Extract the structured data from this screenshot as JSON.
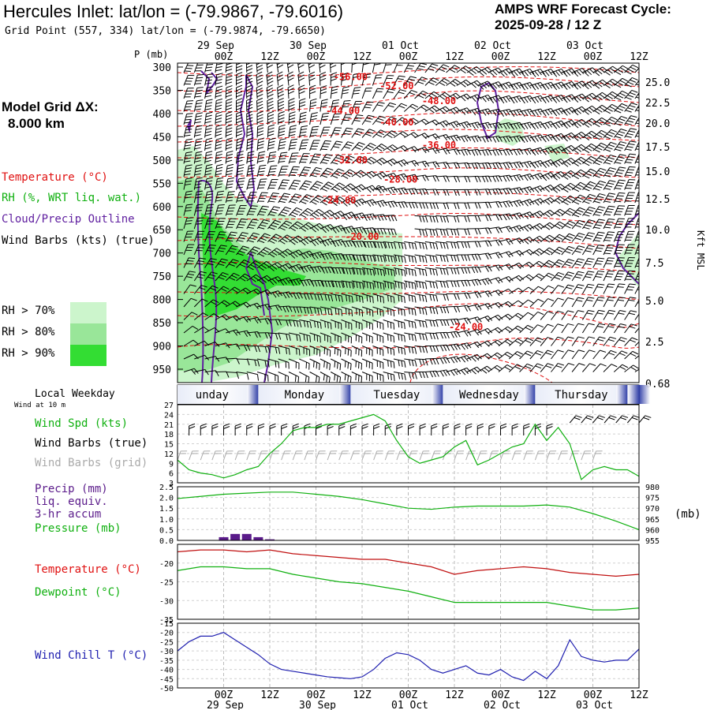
{
  "header": {
    "title": "Hercules Inlet:  lat/lon = (-79.9867, -79.6016)",
    "subtitle": "Grid Point (557, 334) lat/lon = (-79.9874, -79.6650)",
    "cycle_label": "AMPS WRF Forecast Cycle:",
    "cycle_value": "2025-09-28 / 12  Z"
  },
  "model_grid": {
    "label": "Model Grid ΔX:",
    "value": "8.000 km"
  },
  "legend": {
    "temperature": "Temperature (°C)",
    "rh": "RH (%, WRT liq. wat.)",
    "cloud": "Cloud/Precip Outline",
    "wind": "Wind Barbs (kts) (true)",
    "rh70": "RH > 70%",
    "rh80": "RH > 80%",
    "rh90": "RH > 90%",
    "local_weekday": "Local Weekday",
    "wind_10m": "Wind at 10 m",
    "wind_spd": "Wind Spd (kts)",
    "wind_barbs_true": "Wind Barbs (true)",
    "wind_barbs_grid": "Wind Barbs (grid)",
    "precip1": "Precip (mm)",
    "precip2": "liq. equiv.",
    "precip3": "3-hr accum",
    "pressure": "Pressure (mb)",
    "temp2": "Temperature (°C)",
    "dewpoint": "Dewpoint (°C)",
    "windchill": "Wind Chill T (°C)",
    "mb_unit": "(mb)"
  },
  "colors": {
    "temperature": "#e01010",
    "rh_label": "#10b010",
    "cloud": "#6020a0",
    "rh70": "#ccf5cc",
    "rh80": "#99e699",
    "rh90": "#33dd33",
    "windchill": "#2020b0",
    "precip": "#5a1a8a",
    "grid_barbs": "#aaaaaa"
  },
  "chart_data": [
    {
      "type": "heatmap",
      "name": "cross-section",
      "yaxis_title": "P (mb)",
      "pressure_ticks": [
        300,
        350,
        400,
        450,
        500,
        550,
        600,
        650,
        700,
        750,
        800,
        850,
        900,
        950
      ],
      "kft_ticks": [
        "25.0",
        "22.5",
        "20.0",
        "17.5",
        "15.0",
        "12.5",
        "10.0",
        "7.5",
        "5.0",
        "2.5",
        "0.68"
      ],
      "kft_title": "Kft MSL",
      "date_labels": [
        {
          "day": "29 Sep",
          "hour": 0
        },
        {
          "day": "30 Sep",
          "hour": 24
        },
        {
          "day": "01 Oct",
          "hour": 48
        },
        {
          "day": "02 Oct",
          "hour": 72
        },
        {
          "day": "03 Oct",
          "hour": 96
        }
      ],
      "time_ticks": [
        "00Z",
        "12Z",
        "00Z",
        "12Z",
        "00Z",
        "12Z",
        "00Z",
        "12Z",
        "00Z",
        "12Z"
      ],
      "time_range_hours": [
        -12,
        108
      ],
      "temperature_labels": [
        {
          "text": "-56.00",
          "hour": 33,
          "p": 321
        },
        {
          "text": "-52.00",
          "hour": 45,
          "p": 341
        },
        {
          "text": "-48.00",
          "hour": 56,
          "p": 373
        },
        {
          "text": "-44.00",
          "hour": 31,
          "p": 394
        },
        {
          "text": "-40.00",
          "hour": 45,
          "p": 419
        },
        {
          "text": "-36.00",
          "hour": 56,
          "p": 468
        },
        {
          "text": "-32.00",
          "hour": 33,
          "p": 500
        },
        {
          "text": "-28.00",
          "hour": 46,
          "p": 542
        },
        {
          "text": "-24.00",
          "hour": 30,
          "p": 587
        },
        {
          "text": "-20.00",
          "hour": 36,
          "p": 665
        },
        {
          "text": "-24.00",
          "hour": 63,
          "p": 859
        }
      ],
      "weekdays": [
        "unday",
        "Monday",
        "Tuesday",
        "Wednesday",
        "Thursday"
      ]
    },
    {
      "type": "line",
      "name": "wind-speed",
      "ylim": [
        3,
        27
      ],
      "yticks": [
        3,
        6,
        9,
        12,
        15,
        18,
        21,
        24,
        27
      ],
      "x_hours": [
        -12,
        -9,
        -6,
        -3,
        0,
        3,
        6,
        9,
        12,
        15,
        18,
        21,
        24,
        27,
        30,
        33,
        36,
        39,
        42,
        45,
        48,
        51,
        54,
        57,
        60,
        63,
        66,
        69,
        72,
        75,
        78,
        81,
        84,
        87,
        90,
        93,
        96,
        99,
        102,
        105,
        108
      ],
      "wind_kts": [
        10,
        7,
        6,
        5.5,
        4.5,
        5.5,
        7,
        8,
        12,
        15,
        19,
        20,
        20,
        21,
        21,
        22,
        23,
        24,
        22,
        16,
        11,
        9,
        10,
        11,
        14,
        16,
        8.5,
        10,
        12,
        14,
        15,
        21,
        16,
        20,
        15,
        4,
        7,
        8,
        7,
        7,
        5
      ]
    },
    {
      "type": "bar+line",
      "name": "precip-pressure",
      "precip_ylim": [
        0,
        2.5
      ],
      "precip_yticks": [
        "0.0",
        "0.5",
        "1.0",
        "1.5",
        "2.0",
        "2.5"
      ],
      "pressure_ylim": [
        955,
        980
      ],
      "pressure_yticks": [
        955,
        960,
        965,
        970,
        975,
        980
      ],
      "precip_hours": [
        0,
        3,
        6,
        9,
        12
      ],
      "precip_mm": [
        0.15,
        0.3,
        0.3,
        0.15,
        0.05
      ],
      "x_hours": [
        -12,
        -6,
        0,
        6,
        12,
        18,
        24,
        30,
        36,
        42,
        48,
        54,
        60,
        66,
        72,
        78,
        84,
        90,
        96,
        102,
        108
      ],
      "pressure_mb": [
        974.5,
        975.5,
        976.5,
        977.0,
        977.5,
        977.5,
        976.5,
        975.5,
        974.0,
        972.0,
        970.0,
        969.5,
        970.5,
        971.0,
        971.0,
        971.0,
        971.5,
        970.5,
        967.5,
        964.0,
        960.0
      ]
    },
    {
      "type": "line",
      "name": "temperature-dewpoint",
      "ylim": [
        -35,
        -15
      ],
      "yticks": [
        -35,
        -30,
        -25,
        -20
      ],
      "x_hours": [
        -12,
        -6,
        0,
        6,
        12,
        18,
        24,
        30,
        36,
        42,
        48,
        54,
        60,
        66,
        72,
        78,
        84,
        90,
        96,
        102,
        108
      ],
      "temperature_c": [
        -17,
        -16.5,
        -16.5,
        -17,
        -16.5,
        -17.5,
        -18,
        -18.5,
        -19,
        -19,
        -20,
        -21,
        -23,
        -22,
        -21.5,
        -21,
        -21.5,
        -22.5,
        -23,
        -23.5,
        -23
      ],
      "dewpoint_c": [
        -22,
        -21,
        -21,
        -21.5,
        -21.5,
        -23,
        -24,
        -25,
        -25.5,
        -26.5,
        -27.5,
        -29,
        -30.5,
        -30.5,
        -30.5,
        -30.5,
        -30.5,
        -31.5,
        -32.5,
        -32.5,
        -32
      ]
    },
    {
      "type": "line",
      "name": "wind-chill",
      "ylim": [
        -50,
        -15
      ],
      "yticks": [
        -50,
        -45,
        -40,
        -35,
        -30,
        -25,
        -20,
        -15
      ],
      "x_hours": [
        -12,
        -9,
        -6,
        -3,
        0,
        3,
        6,
        9,
        12,
        15,
        18,
        21,
        24,
        27,
        30,
        33,
        36,
        39,
        42,
        45,
        48,
        51,
        54,
        57,
        60,
        63,
        66,
        69,
        72,
        75,
        78,
        81,
        84,
        87,
        90,
        93,
        96,
        99,
        102,
        105,
        108
      ],
      "windchill_c": [
        -30,
        -25,
        -22,
        -22,
        -20,
        -24,
        -28,
        -32,
        -37,
        -40,
        -41,
        -42,
        -43,
        -44,
        -44.5,
        -45,
        -44,
        -40,
        -34,
        -31,
        -32,
        -35,
        -40,
        -42,
        -40,
        -38,
        -42,
        -43,
        -40,
        -44,
        -46,
        -41,
        -45,
        -38,
        -24,
        -33,
        -35,
        -36,
        -35,
        -35,
        -29
      ]
    }
  ]
}
